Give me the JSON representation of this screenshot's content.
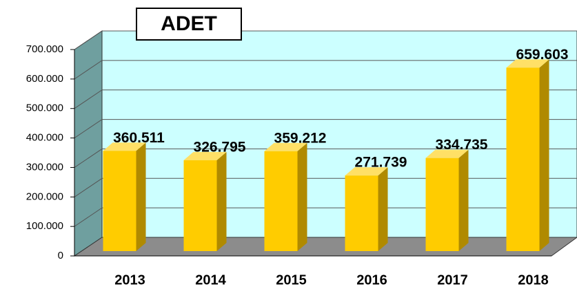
{
  "chart_data": {
    "type": "bar",
    "title": "ADET",
    "categories": [
      "2013",
      "2014",
      "2015",
      "2016",
      "2017",
      "2018"
    ],
    "values": [
      360511,
      326795,
      359212,
      271739,
      334735,
      659603
    ],
    "value_labels": [
      "360.511",
      "326.795",
      "359.212",
      "271.739",
      "334.735",
      "659.603"
    ],
    "color": "#ffcc00",
    "ylim": [
      0,
      700000
    ],
    "yticks": [
      {
        "value": 0,
        "label": "0"
      },
      {
        "value": 100000,
        "label": "100.000"
      },
      {
        "value": 200000,
        "label": "200.000"
      },
      {
        "value": 300000,
        "label": "300.000"
      },
      {
        "value": 400000,
        "label": "400.000"
      },
      {
        "value": 500000,
        "label": "500.000"
      },
      {
        "value": 600000,
        "label": "600.000"
      },
      {
        "value": 700000,
        "label": "700.000"
      }
    ],
    "grid": true
  }
}
